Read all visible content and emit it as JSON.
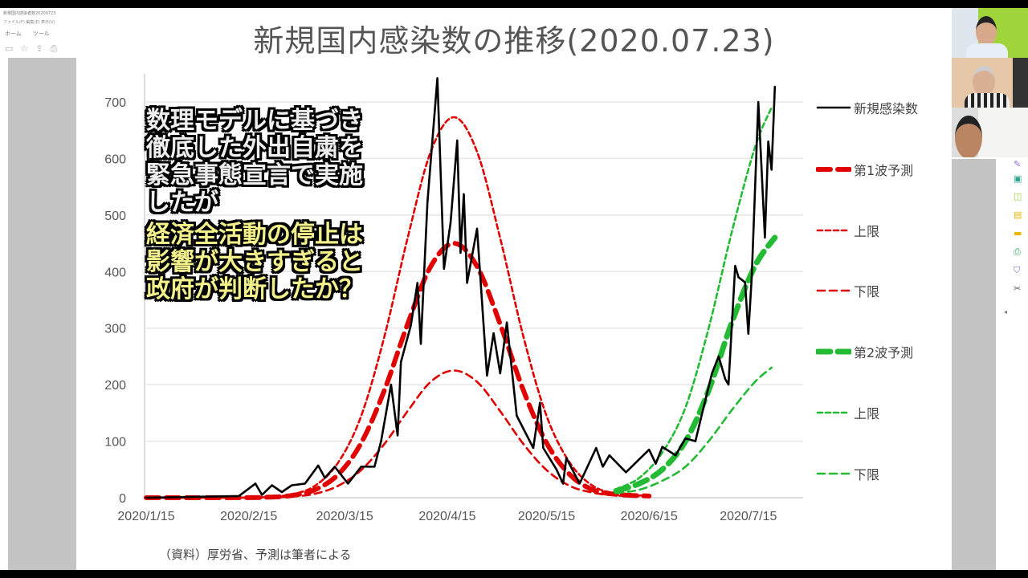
{
  "viewer": {
    "file_name": "新規国内感染者数20200723",
    "menu": [
      "ファイル(F)",
      "編集(E)",
      "表示(V)"
    ],
    "tabs": [
      "ホーム",
      "ツール"
    ],
    "toolbar_icons": [
      "save-icon",
      "star-icon",
      "upload-icon",
      "print-icon"
    ],
    "right_tools": [
      "sign-icon",
      "export-pdf-icon",
      "organize-pages-icon",
      "create-pdf-icon",
      "comment-icon",
      "print-production-icon",
      "protect-icon",
      "more-tools-icon"
    ]
  },
  "slide": {
    "title": "新規国内感染数の推移(2020.07.23)",
    "source": "（資料）厚労省、予測は筆者による",
    "overlay_white": [
      "数理モデルに基づき",
      "徹底した外出自粛を",
      "緊急事態宣言で実施",
      "したが"
    ],
    "overlay_yellow": [
      "経済全活動の停止は",
      "影響が大きすぎると",
      "政府が判断したか？"
    ]
  },
  "participants": 3,
  "chart_data": {
    "type": "line",
    "title": "新規国内感染数の推移(2020.07.23)",
    "xlabel": "",
    "ylabel": "",
    "x_ticks": [
      "2020/1/15",
      "2020/2/15",
      "2020/3/15",
      "2020/4/15",
      "2020/5/15",
      "2020/6/15",
      "2020/7/15"
    ],
    "y_ticks": [
      0,
      100,
      200,
      300,
      400,
      500,
      600,
      700
    ],
    "ylim": [
      0,
      750
    ],
    "xlim": [
      "2020/1/15",
      "2020/7/26"
    ],
    "grid": "horizontal",
    "legend_position": "right",
    "series": [
      {
        "name": "新規感染数",
        "color": "#000000",
        "style": "solid",
        "points": [
          [
            "2020/1/15",
            0
          ],
          [
            "2020/2/12",
            3
          ],
          [
            "2020/2/17",
            25
          ],
          [
            "2020/2/19",
            5
          ],
          [
            "2020/2/22",
            22
          ],
          [
            "2020/2/25",
            10
          ],
          [
            "2020/2/28",
            22
          ],
          [
            "2020/3/3",
            25
          ],
          [
            "2020/3/7",
            57
          ],
          [
            "2020/3/9",
            35
          ],
          [
            "2020/3/12",
            55
          ],
          [
            "2020/3/16",
            25
          ],
          [
            "2020/3/20",
            55
          ],
          [
            "2020/3/24",
            55
          ],
          [
            "2020/3/26",
            100
          ],
          [
            "2020/3/29",
            200
          ],
          [
            "2020/3/31",
            110
          ],
          [
            "2020/4/1",
            240
          ],
          [
            "2020/4/4",
            305
          ],
          [
            "2020/4/6",
            380
          ],
          [
            "2020/4/7",
            272
          ],
          [
            "2020/4/9",
            522
          ],
          [
            "2020/4/12",
            742
          ],
          [
            "2020/4/14",
            405
          ],
          [
            "2020/4/16",
            486
          ],
          [
            "2020/4/18",
            632
          ],
          [
            "2020/4/19",
            433
          ],
          [
            "2020/4/20",
            537
          ],
          [
            "2020/4/21",
            380
          ],
          [
            "2020/4/24",
            476
          ],
          [
            "2020/4/27",
            216
          ],
          [
            "2020/4/29",
            291
          ],
          [
            "2020/5/1",
            220
          ],
          [
            "2020/5/3",
            310
          ],
          [
            "2020/5/6",
            145
          ],
          [
            "2020/5/11",
            88
          ],
          [
            "2020/5/13",
            168
          ],
          [
            "2020/5/14",
            88
          ],
          [
            "2020/5/18",
            50
          ],
          [
            "2020/5/20",
            25
          ],
          [
            "2020/5/21",
            70
          ],
          [
            "2020/5/25",
            25
          ],
          [
            "2020/5/30",
            88
          ],
          [
            "2020/6/1",
            55
          ],
          [
            "2020/6/3",
            75
          ],
          [
            "2020/6/8",
            45
          ],
          [
            "2020/6/15",
            85
          ],
          [
            "2020/6/17",
            60
          ],
          [
            "2020/6/19",
            90
          ],
          [
            "2020/6/23",
            75
          ],
          [
            "2020/6/26",
            105
          ],
          [
            "2020/6/29",
            100
          ],
          [
            "2020/7/1",
            149
          ],
          [
            "2020/7/4",
            220
          ],
          [
            "2020/7/6",
            250
          ],
          [
            "2020/7/8",
            210
          ],
          [
            "2020/7/9",
            200
          ],
          [
            "2020/7/11",
            410
          ],
          [
            "2020/7/12",
            390
          ],
          [
            "2020/7/14",
            381
          ],
          [
            "2020/7/15",
            290
          ],
          [
            "2020/7/16",
            390
          ],
          [
            "2020/7/18",
            700
          ],
          [
            "2020/7/20",
            460
          ],
          [
            "2020/7/21",
            630
          ],
          [
            "2020/7/22",
            580
          ],
          [
            "2020/7/23",
            727
          ]
        ]
      },
      {
        "name": "第1波予測",
        "color": "#e00000",
        "style": "long-dash-thick",
        "points": [
          [
            "2020/1/15",
            0
          ],
          [
            "2020/2/14",
            0.2
          ],
          [
            "2020/2/21",
            1
          ],
          [
            "2020/2/28",
            4
          ],
          [
            "2020/3/6",
            14
          ],
          [
            "2020/3/13",
            41
          ],
          [
            "2020/3/20",
            97
          ],
          [
            "2020/3/27",
            190
          ],
          [
            "2020/4/3",
            307
          ],
          [
            "2020/4/10",
            409
          ],
          [
            "2020/4/17",
            450
          ],
          [
            "2020/4/24",
            409
          ],
          [
            "2020/5/1",
            307
          ],
          [
            "2020/5/8",
            190
          ],
          [
            "2020/5/15",
            97
          ],
          [
            "2020/5/22",
            41
          ],
          [
            "2020/5/29",
            14
          ],
          [
            "2020/6/5",
            6
          ],
          [
            "2020/6/15",
            3
          ]
        ]
      },
      {
        "name": "上限",
        "color": "#e00000",
        "style": "short-dash",
        "points": [
          [
            "2020/1/15",
            0
          ],
          [
            "2020/2/14",
            0.3
          ],
          [
            "2020/2/21",
            1.5
          ],
          [
            "2020/2/28",
            6
          ],
          [
            "2020/3/6",
            21
          ],
          [
            "2020/3/13",
            62
          ],
          [
            "2020/3/20",
            145
          ],
          [
            "2020/3/27",
            285
          ],
          [
            "2020/4/3",
            459
          ],
          [
            "2020/4/10",
            612
          ],
          [
            "2020/4/17",
            673
          ],
          [
            "2020/4/24",
            612
          ],
          [
            "2020/5/1",
            459
          ],
          [
            "2020/5/8",
            285
          ],
          [
            "2020/5/15",
            145
          ],
          [
            "2020/5/22",
            62
          ],
          [
            "2020/5/29",
            21
          ],
          [
            "2020/6/5",
            8
          ],
          [
            "2020/6/15",
            3
          ]
        ]
      },
      {
        "name": "下限",
        "color": "#e00000",
        "style": "dash",
        "points": [
          [
            "2020/1/15",
            0
          ],
          [
            "2020/2/14",
            0.1
          ],
          [
            "2020/2/21",
            0.5
          ],
          [
            "2020/2/28",
            2
          ],
          [
            "2020/3/6",
            7
          ],
          [
            "2020/3/13",
            21
          ],
          [
            "2020/3/20",
            49
          ],
          [
            "2020/3/27",
            95
          ],
          [
            "2020/4/3",
            153
          ],
          [
            "2020/4/10",
            205
          ],
          [
            "2020/4/17",
            225
          ],
          [
            "2020/4/24",
            205
          ],
          [
            "2020/5/1",
            153
          ],
          [
            "2020/5/8",
            95
          ],
          [
            "2020/5/15",
            49
          ],
          [
            "2020/5/22",
            21
          ],
          [
            "2020/5/29",
            9
          ],
          [
            "2020/6/5",
            4
          ],
          [
            "2020/6/15",
            2
          ]
        ]
      },
      {
        "name": "第2波予測",
        "color": "#22bb33",
        "style": "long-dash-thick",
        "points": [
          [
            "2020/6/5",
            12
          ],
          [
            "2020/6/12",
            25
          ],
          [
            "2020/6/19",
            50
          ],
          [
            "2020/6/26",
            100
          ],
          [
            "2020/7/3",
            190
          ],
          [
            "2020/7/10",
            310
          ],
          [
            "2020/7/17",
            410
          ],
          [
            "2020/7/23",
            460
          ]
        ]
      },
      {
        "name": "上限",
        "color": "#22bb33",
        "style": "short-dash",
        "points": [
          [
            "2020/6/5",
            15
          ],
          [
            "2020/6/12",
            35
          ],
          [
            "2020/6/19",
            80
          ],
          [
            "2020/6/26",
            160
          ],
          [
            "2020/7/3",
            300
          ],
          [
            "2020/7/10",
            470
          ],
          [
            "2020/7/17",
            620
          ],
          [
            "2020/7/22",
            690
          ]
        ]
      },
      {
        "name": "下限",
        "color": "#22bb33",
        "style": "dash",
        "points": [
          [
            "2020/6/5",
            8
          ],
          [
            "2020/6/12",
            14
          ],
          [
            "2020/6/19",
            30
          ],
          [
            "2020/6/26",
            55
          ],
          [
            "2020/7/3",
            100
          ],
          [
            "2020/7/10",
            155
          ],
          [
            "2020/7/17",
            205
          ],
          [
            "2020/7/22",
            230
          ]
        ]
      }
    ]
  }
}
